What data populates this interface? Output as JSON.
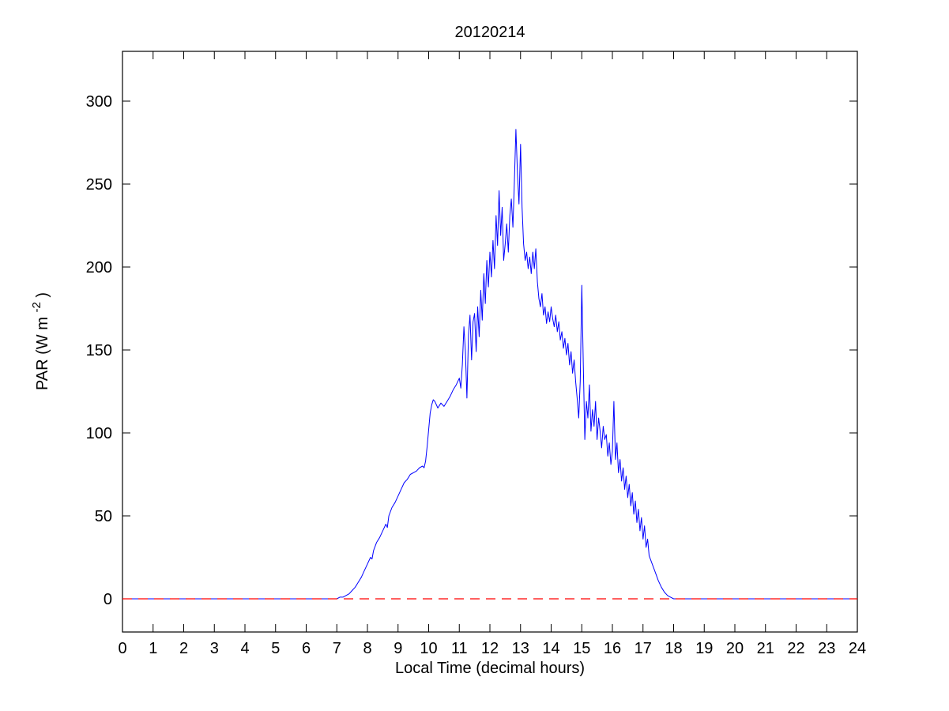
{
  "chart_data": {
    "type": "line",
    "title": "20120214",
    "xlabel": "Local Time (decimal hours)",
    "ylabel": "PAR (W m-2)",
    "ylabel_parts": {
      "prefix": "PAR (W m",
      "superscript": "-2",
      "suffix": ")"
    },
    "xlim": [
      0,
      24
    ],
    "ylim": [
      -20,
      330
    ],
    "xticks": [
      0,
      1,
      2,
      3,
      4,
      5,
      6,
      7,
      8,
      9,
      10,
      11,
      12,
      13,
      14,
      15,
      16,
      17,
      18,
      19,
      20,
      21,
      22,
      23,
      24
    ],
    "yticks": [
      0,
      50,
      100,
      150,
      200,
      250,
      300
    ],
    "grid": false,
    "axis_color": "#000000",
    "background_color": "#ffffff",
    "zero_line": {
      "y": 0,
      "color": "#ff0000",
      "style": "dashed"
    },
    "series": [
      {
        "name": "PAR",
        "color": "#0000ff",
        "style": "solid",
        "points": [
          [
            0,
            0
          ],
          [
            6.9,
            0
          ],
          [
            7.0,
            0
          ],
          [
            7.1,
            1
          ],
          [
            7.2,
            1
          ],
          [
            7.3,
            2
          ],
          [
            7.4,
            3
          ],
          [
            7.5,
            5
          ],
          [
            7.6,
            7
          ],
          [
            7.7,
            10
          ],
          [
            7.8,
            13
          ],
          [
            7.9,
            17
          ],
          [
            8.0,
            21
          ],
          [
            8.1,
            25
          ],
          [
            8.15,
            24
          ],
          [
            8.2,
            29
          ],
          [
            8.3,
            34
          ],
          [
            8.4,
            37
          ],
          [
            8.5,
            41
          ],
          [
            8.6,
            45
          ],
          [
            8.65,
            43
          ],
          [
            8.7,
            50
          ],
          [
            8.8,
            55
          ],
          [
            8.9,
            58
          ],
          [
            9.0,
            62
          ],
          [
            9.1,
            66
          ],
          [
            9.2,
            70
          ],
          [
            9.3,
            72
          ],
          [
            9.4,
            75
          ],
          [
            9.5,
            76
          ],
          [
            9.6,
            77
          ],
          [
            9.7,
            79
          ],
          [
            9.8,
            80
          ],
          [
            9.85,
            79
          ],
          [
            9.9,
            83
          ],
          [
            9.95,
            92
          ],
          [
            10.0,
            102
          ],
          [
            10.05,
            112
          ],
          [
            10.1,
            117
          ],
          [
            10.15,
            120
          ],
          [
            10.2,
            119
          ],
          [
            10.3,
            115
          ],
          [
            10.4,
            118
          ],
          [
            10.5,
            116
          ],
          [
            10.6,
            119
          ],
          [
            10.7,
            122
          ],
          [
            10.8,
            126
          ],
          [
            10.9,
            129
          ],
          [
            11.0,
            133
          ],
          [
            11.05,
            127
          ],
          [
            11.1,
            141
          ],
          [
            11.15,
            164
          ],
          [
            11.2,
            149
          ],
          [
            11.25,
            121
          ],
          [
            11.3,
            159
          ],
          [
            11.35,
            171
          ],
          [
            11.4,
            144
          ],
          [
            11.45,
            167
          ],
          [
            11.5,
            172
          ],
          [
            11.55,
            149
          ],
          [
            11.6,
            176
          ],
          [
            11.65,
            158
          ],
          [
            11.7,
            186
          ],
          [
            11.75,
            168
          ],
          [
            11.8,
            196
          ],
          [
            11.85,
            178
          ],
          [
            11.9,
            204
          ],
          [
            11.95,
            188
          ],
          [
            12.0,
            209
          ],
          [
            12.05,
            194
          ],
          [
            12.1,
            216
          ],
          [
            12.15,
            199
          ],
          [
            12.2,
            231
          ],
          [
            12.25,
            213
          ],
          [
            12.3,
            246
          ],
          [
            12.35,
            219
          ],
          [
            12.4,
            236
          ],
          [
            12.45,
            204
          ],
          [
            12.5,
            214
          ],
          [
            12.55,
            226
          ],
          [
            12.6,
            209
          ],
          [
            12.65,
            231
          ],
          [
            12.7,
            241
          ],
          [
            12.75,
            224
          ],
          [
            12.8,
            252
          ],
          [
            12.85,
            283
          ],
          [
            12.9,
            256
          ],
          [
            12.95,
            238
          ],
          [
            13.0,
            274
          ],
          [
            13.05,
            236
          ],
          [
            13.1,
            214
          ],
          [
            13.15,
            204
          ],
          [
            13.2,
            209
          ],
          [
            13.25,
            199
          ],
          [
            13.3,
            206
          ],
          [
            13.35,
            196
          ],
          [
            13.4,
            209
          ],
          [
            13.45,
            199
          ],
          [
            13.5,
            211
          ],
          [
            13.55,
            191
          ],
          [
            13.6,
            181
          ],
          [
            13.65,
            176
          ],
          [
            13.7,
            184
          ],
          [
            13.75,
            171
          ],
          [
            13.8,
            176
          ],
          [
            13.85,
            166
          ],
          [
            13.9,
            173
          ],
          [
            13.95,
            167
          ],
          [
            14.0,
            176
          ],
          [
            14.05,
            169
          ],
          [
            14.1,
            164
          ],
          [
            14.15,
            171
          ],
          [
            14.2,
            161
          ],
          [
            14.25,
            167
          ],
          [
            14.3,
            156
          ],
          [
            14.35,
            161
          ],
          [
            14.4,
            151
          ],
          [
            14.45,
            157
          ],
          [
            14.5,
            147
          ],
          [
            14.55,
            154
          ],
          [
            14.6,
            141
          ],
          [
            14.65,
            149
          ],
          [
            14.7,
            136
          ],
          [
            14.75,
            144
          ],
          [
            14.8,
            131
          ],
          [
            14.85,
            121
          ],
          [
            14.9,
            109
          ],
          [
            14.95,
            131
          ],
          [
            15.0,
            189
          ],
          [
            15.05,
            141
          ],
          [
            15.1,
            96
          ],
          [
            15.15,
            119
          ],
          [
            15.2,
            109
          ],
          [
            15.25,
            129
          ],
          [
            15.3,
            101
          ],
          [
            15.35,
            114
          ],
          [
            15.4,
            104
          ],
          [
            15.45,
            119
          ],
          [
            15.5,
            96
          ],
          [
            15.55,
            109
          ],
          [
            15.6,
            101
          ],
          [
            15.65,
            91
          ],
          [
            15.7,
            104
          ],
          [
            15.75,
            96
          ],
          [
            15.8,
            99
          ],
          [
            15.85,
            86
          ],
          [
            15.9,
            94
          ],
          [
            15.95,
            81
          ],
          [
            16.0,
            89
          ],
          [
            16.05,
            119
          ],
          [
            16.1,
            84
          ],
          [
            16.15,
            94
          ],
          [
            16.2,
            76
          ],
          [
            16.25,
            84
          ],
          [
            16.3,
            71
          ],
          [
            16.35,
            79
          ],
          [
            16.4,
            66
          ],
          [
            16.45,
            74
          ],
          [
            16.5,
            61
          ],
          [
            16.55,
            69
          ],
          [
            16.6,
            56
          ],
          [
            16.65,
            64
          ],
          [
            16.7,
            51
          ],
          [
            16.75,
            59
          ],
          [
            16.8,
            46
          ],
          [
            16.85,
            54
          ],
          [
            16.9,
            41
          ],
          [
            16.95,
            49
          ],
          [
            17.0,
            36
          ],
          [
            17.05,
            44
          ],
          [
            17.1,
            31
          ],
          [
            17.15,
            36
          ],
          [
            17.2,
            26
          ],
          [
            17.3,
            21
          ],
          [
            17.4,
            16
          ],
          [
            17.5,
            11
          ],
          [
            17.6,
            7
          ],
          [
            17.7,
            4
          ],
          [
            17.8,
            2
          ],
          [
            17.9,
            1
          ],
          [
            18.0,
            0
          ],
          [
            24,
            0
          ]
        ]
      }
    ]
  }
}
